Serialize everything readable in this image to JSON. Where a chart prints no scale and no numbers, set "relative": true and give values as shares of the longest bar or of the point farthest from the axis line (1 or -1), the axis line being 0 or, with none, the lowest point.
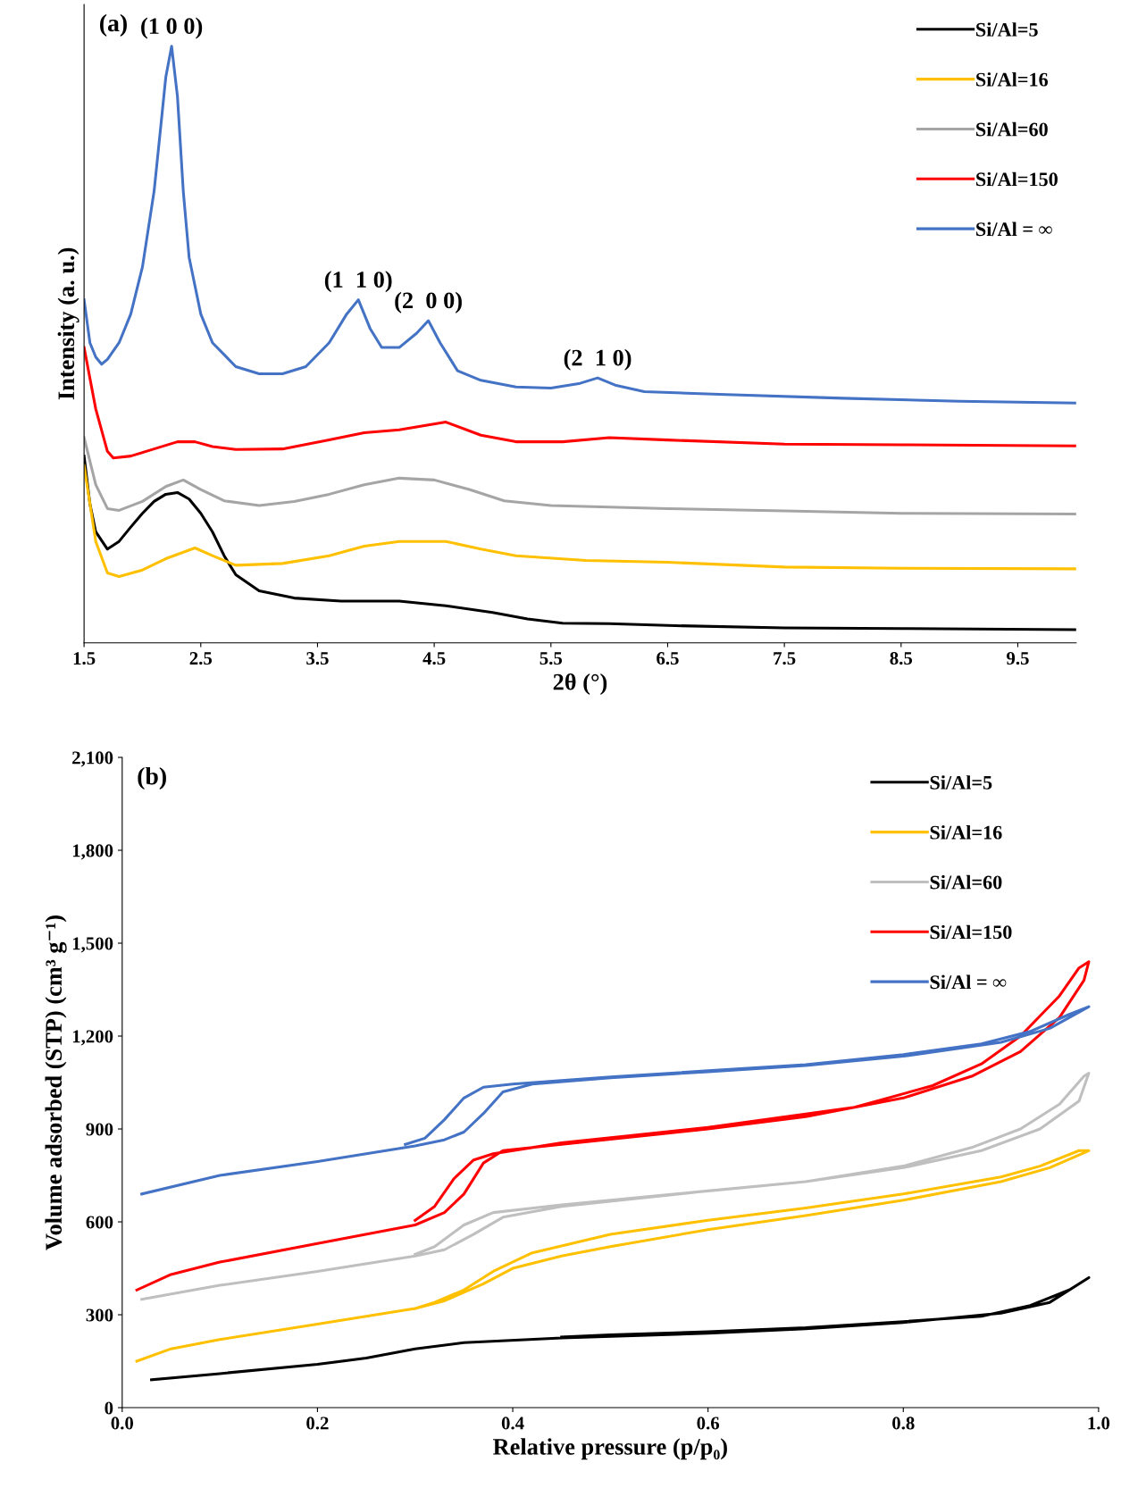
{
  "chart_data": [
    {
      "type": "line",
      "relative": true,
      "xlabel": "2θ (°)",
      "ylabel": "Intensity (a. u.)",
      "xlim": [
        1.5,
        10
      ],
      "xticks": [
        1.5,
        2.5,
        3.5,
        4.5,
        5.5,
        6.5,
        7.5,
        8.5,
        9.5
      ],
      "legend": "top right",
      "grid": false,
      "tick_labels": "x",
      "annotations": [
        "(a)",
        {
          "text": "(1 0 0)",
          "x": 2.25,
          "y": 1.0
        },
        {
          "text": "(1  1 0)",
          "x": 3.85,
          "y": 0.575
        },
        {
          "text": "(2  0 0)",
          "x": 4.45,
          "y": 0.54
        },
        {
          "text": "(2  1 0)",
          "x": 5.9,
          "y": 0.444
        }
      ],
      "series": [
        {
          "name": "Si/Al=5",
          "color": "#000000",
          "x": [
            1.5,
            1.55,
            1.6,
            1.7,
            1.8,
            1.9,
            2.0,
            2.1,
            2.2,
            2.3,
            2.4,
            2.5,
            2.6,
            2.7,
            2.8,
            3.0,
            3.3,
            3.7,
            4.2,
            4.6,
            5.0,
            5.3,
            5.6,
            6.0,
            6.5,
            7.5,
            8.5,
            10
          ],
          "values": [
            0.313,
            0.233,
            0.186,
            0.157,
            0.17,
            0.194,
            0.217,
            0.237,
            0.249,
            0.252,
            0.241,
            0.217,
            0.186,
            0.146,
            0.114,
            0.087,
            0.075,
            0.07,
            0.07,
            0.062,
            0.051,
            0.04,
            0.033,
            0.032,
            0.029,
            0.025,
            0.024,
            0.022
          ]
        },
        {
          "name": "Si/Al=16",
          "color": "#ffc000",
          "x": [
            1.5,
            1.6,
            1.7,
            1.8,
            2.0,
            2.2,
            2.45,
            2.6,
            2.8,
            3.2,
            3.6,
            3.9,
            4.2,
            4.6,
            4.9,
            5.2,
            5.8,
            6.5,
            7.5,
            8.5,
            10
          ],
          "values": [
            0.297,
            0.17,
            0.117,
            0.111,
            0.122,
            0.141,
            0.159,
            0.146,
            0.13,
            0.133,
            0.146,
            0.162,
            0.17,
            0.17,
            0.157,
            0.146,
            0.138,
            0.135,
            0.127,
            0.125,
            0.124
          ]
        },
        {
          "name": "Si/Al=60",
          "color": "#a5a5a5",
          "x": [
            1.5,
            1.6,
            1.7,
            1.8,
            2.0,
            2.2,
            2.35,
            2.5,
            2.7,
            3.0,
            3.3,
            3.6,
            3.9,
            4.2,
            4.5,
            4.8,
            5.1,
            5.5,
            6.5,
            7.5,
            8.5,
            10
          ],
          "values": [
            0.344,
            0.265,
            0.225,
            0.222,
            0.237,
            0.262,
            0.273,
            0.257,
            0.238,
            0.23,
            0.237,
            0.249,
            0.265,
            0.276,
            0.273,
            0.257,
            0.238,
            0.23,
            0.225,
            0.221,
            0.217,
            0.216
          ]
        },
        {
          "name": "Si/Al=150",
          "color": "#ff0000",
          "x": [
            1.5,
            1.6,
            1.7,
            1.75,
            1.9,
            2.1,
            2.3,
            2.45,
            2.6,
            2.8,
            3.2,
            3.6,
            3.9,
            4.2,
            4.6,
            4.9,
            5.2,
            5.6,
            6.0,
            6.5,
            7.5,
            8.5,
            10
          ],
          "values": [
            0.495,
            0.392,
            0.321,
            0.31,
            0.313,
            0.325,
            0.337,
            0.337,
            0.329,
            0.324,
            0.325,
            0.34,
            0.352,
            0.357,
            0.37,
            0.348,
            0.337,
            0.337,
            0.344,
            0.34,
            0.333,
            0.332,
            0.33
          ]
        },
        {
          "name": "Si/Al = ∞",
          "color": "#4472c4",
          "x": [
            1.5,
            1.55,
            1.6,
            1.65,
            1.7,
            1.8,
            1.9,
            2.0,
            2.1,
            2.15,
            2.2,
            2.25,
            2.3,
            2.35,
            2.4,
            2.5,
            2.6,
            2.8,
            3.0,
            3.2,
            3.4,
            3.6,
            3.75,
            3.85,
            3.95,
            4.05,
            4.2,
            4.35,
            4.45,
            4.55,
            4.7,
            4.9,
            5.2,
            5.5,
            5.75,
            5.9,
            6.05,
            6.3,
            7.0,
            8.0,
            9.0,
            10
          ],
          "values": [
            0.575,
            0.503,
            0.479,
            0.467,
            0.475,
            0.503,
            0.551,
            0.63,
            0.757,
            0.852,
            0.948,
            1.0,
            0.916,
            0.757,
            0.646,
            0.551,
            0.503,
            0.463,
            0.451,
            0.451,
            0.463,
            0.503,
            0.551,
            0.575,
            0.527,
            0.495,
            0.495,
            0.519,
            0.54,
            0.503,
            0.456,
            0.44,
            0.429,
            0.427,
            0.435,
            0.444,
            0.432,
            0.421,
            0.416,
            0.41,
            0.405,
            0.402
          ]
        }
      ]
    },
    {
      "type": "line",
      "xlabel": "Relative pressure (p/p₀)",
      "ylabel": "Volume adsorbed (STP) (cm³ g⁻¹)",
      "xlim": [
        0,
        1
      ],
      "ylim": [
        0,
        2100
      ],
      "xticks": [
        {
          "value": 0,
          "label": "0.0"
        },
        {
          "value": 0.2,
          "label": "0.2"
        },
        {
          "value": 0.4,
          "label": "0.4"
        },
        {
          "value": 0.6,
          "label": "0.6"
        },
        {
          "value": 0.8,
          "label": "0.8"
        },
        {
          "value": 1,
          "label": "1.0"
        }
      ],
      "yticks": [
        0,
        300,
        600,
        900,
        {
          "value": 1200,
          "label": "1,200"
        },
        {
          "value": 1500,
          "label": "1,500"
        },
        {
          "value": 1800,
          "label": "1,800"
        },
        {
          "value": 2100,
          "label": "2,100"
        }
      ],
      "legend": "top right",
      "grid": false,
      "annotations": [
        "(b)"
      ],
      "series": [
        {
          "name": "Si/Al=5",
          "color": "#000000",
          "x": [
            0.03,
            0.1,
            0.2,
            0.25,
            0.3,
            0.35,
            0.45,
            0.6,
            0.7,
            0.8,
            0.9,
            0.95,
            0.99,
            0.97,
            0.93,
            0.88,
            0.8,
            0.7,
            0.6,
            0.5,
            0.45
          ],
          "values": [
            90,
            110,
            140,
            160,
            190,
            210,
            225,
            240,
            255,
            275,
            305,
            340,
            420,
            380,
            330,
            295,
            278,
            258,
            245,
            235,
            228
          ]
        },
        {
          "name": "Si/Al=16",
          "color": "#ffc000",
          "x": [
            0.015,
            0.05,
            0.1,
            0.2,
            0.3,
            0.33,
            0.37,
            0.4,
            0.45,
            0.5,
            0.6,
            0.7,
            0.8,
            0.9,
            0.95,
            0.99,
            0.98,
            0.94,
            0.9,
            0.8,
            0.7,
            0.6,
            0.5,
            0.42,
            0.38,
            0.35,
            0.32,
            0.3
          ],
          "values": [
            150,
            190,
            220,
            270,
            320,
            345,
            400,
            450,
            490,
            520,
            575,
            620,
            670,
            730,
            775,
            830,
            830,
            780,
            745,
            690,
            645,
            605,
            560,
            500,
            440,
            380,
            340,
            320
          ]
        },
        {
          "name": "Si/Al=60",
          "color": "#bfbfbf",
          "x": [
            0.02,
            0.1,
            0.2,
            0.3,
            0.33,
            0.36,
            0.39,
            0.45,
            0.6,
            0.7,
            0.8,
            0.88,
            0.94,
            0.98,
            0.99,
            0.985,
            0.96,
            0.92,
            0.87,
            0.8,
            0.7,
            0.6,
            0.45,
            0.38,
            0.35,
            0.32,
            0.3
          ],
          "values": [
            350,
            395,
            440,
            490,
            510,
            560,
            615,
            650,
            700,
            730,
            775,
            830,
            900,
            990,
            1080,
            1070,
            980,
            900,
            840,
            780,
            730,
            700,
            655,
            630,
            590,
            520,
            495
          ]
        },
        {
          "name": "Si/Al=150",
          "color": "#ff0000",
          "x": [
            0.015,
            0.05,
            0.1,
            0.2,
            0.3,
            0.33,
            0.35,
            0.37,
            0.39,
            0.45,
            0.6,
            0.7,
            0.8,
            0.87,
            0.92,
            0.96,
            0.985,
            0.99,
            0.98,
            0.96,
            0.92,
            0.88,
            0.83,
            0.75,
            0.6,
            0.45,
            0.38,
            0.36,
            0.34,
            0.32,
            0.3
          ],
          "values": [
            380,
            430,
            470,
            530,
            590,
            630,
            690,
            790,
            830,
            850,
            900,
            940,
            1000,
            1070,
            1150,
            1260,
            1380,
            1440,
            1420,
            1330,
            1200,
            1110,
            1040,
            970,
            905,
            855,
            820,
            800,
            740,
            650,
            605
          ]
        },
        {
          "name": "Si/Al = ∞",
          "color": "#4472c4",
          "x": [
            0.02,
            0.1,
            0.2,
            0.3,
            0.33,
            0.35,
            0.37,
            0.39,
            0.42,
            0.5,
            0.6,
            0.7,
            0.8,
            0.9,
            0.95,
            0.99,
            0.97,
            0.93,
            0.88,
            0.8,
            0.7,
            0.6,
            0.5,
            0.4,
            0.37,
            0.35,
            0.33,
            0.31,
            0.29
          ],
          "values": [
            690,
            750,
            795,
            845,
            865,
            890,
            950,
            1020,
            1045,
            1065,
            1085,
            1105,
            1135,
            1180,
            1225,
            1295,
            1270,
            1215,
            1175,
            1140,
            1108,
            1088,
            1068,
            1045,
            1035,
            1000,
            930,
            870,
            850
          ]
        }
      ]
    }
  ]
}
